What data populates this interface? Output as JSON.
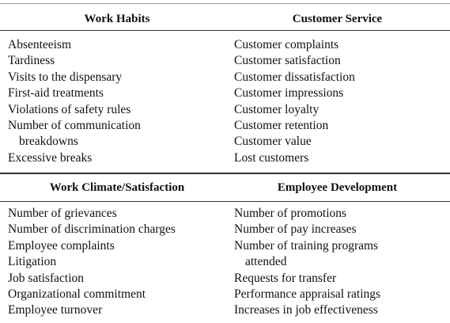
{
  "sections": [
    {
      "columns": [
        {
          "header": "Work Habits",
          "items": [
            "Absenteeism",
            "Tardiness",
            "Visits to the dispensary",
            "First-aid treatments",
            "Violations of safety rules",
            [
              "Number of communication",
              "breakdowns"
            ],
            "Excessive breaks"
          ]
        },
        {
          "header": "Customer Service",
          "items": [
            "Customer complaints",
            "Customer satisfaction",
            "Customer dissatisfaction",
            "Customer impressions",
            "Customer loyalty",
            "Customer retention",
            "Customer value",
            "Lost customers"
          ]
        }
      ]
    },
    {
      "columns": [
        {
          "header": "Work Climate/Satisfaction",
          "items": [
            "Number of grievances",
            "Number of discrimination charges",
            "Employee complaints",
            "Litigation",
            "Job satisfaction",
            "Organizational commitment",
            "Employee turnover"
          ]
        },
        {
          "header": "Employee Development",
          "items": [
            "Number of promotions",
            "Number of pay increases",
            [
              "Number of training programs",
              "attended"
            ],
            "Requests for transfer",
            "Performance appraisal ratings",
            "Increases in job effectiveness"
          ]
        }
      ]
    }
  ]
}
